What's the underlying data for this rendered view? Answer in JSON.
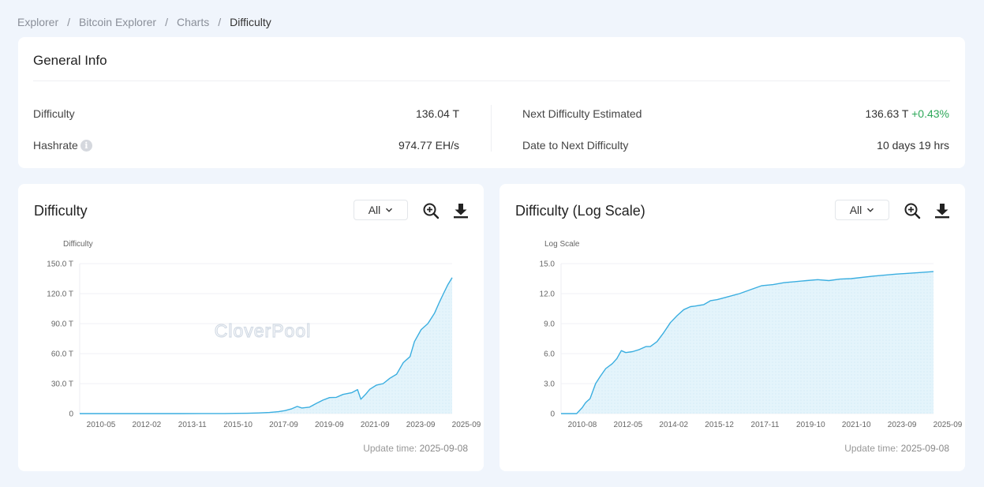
{
  "breadcrumb": {
    "items": [
      "Explorer",
      "Bitcoin Explorer",
      "Charts"
    ],
    "current": "Difficulty",
    "separator": "/"
  },
  "general_info": {
    "title": "General Info",
    "difficulty": {
      "label": "Difficulty",
      "value": "136.04 T"
    },
    "hashrate": {
      "label": "Hashrate",
      "value": "974.77 EH/s",
      "info_icon": "info-icon"
    },
    "next_difficulty": {
      "label": "Next Difficulty Estimated",
      "value": "136.63 T",
      "change": "+0.43%",
      "change_color": "#2ea85a"
    },
    "date_to_next": {
      "label": "Date to Next Difficulty",
      "value": "10 days 19 hrs"
    }
  },
  "charts_ui": {
    "difficulty": {
      "title": "Difficulty",
      "range": "All",
      "update_label": "Update time:",
      "update_value": "2025-09-08"
    },
    "log": {
      "title": "Difficulty (Log Scale)",
      "range": "All",
      "update_label": "Update time:",
      "update_value": "2025-09-08"
    }
  },
  "colors": {
    "line": "#3aaee0",
    "fill": "#e4f4fb",
    "background": "#f0f5fc",
    "watermark": "#d3dbe5"
  },
  "watermark": "CloverPool",
  "chart_data": [
    {
      "type": "area",
      "title": "Difficulty",
      "ylabel": "Difficulty",
      "ylim": [
        0,
        150
      ],
      "yticks": [
        "0",
        "30.0 T",
        "60.0 T",
        "90.0 T",
        "120.0 T",
        "150.0 T"
      ],
      "ytick_values": [
        0,
        30,
        60,
        90,
        120,
        150
      ],
      "xticks": [
        "2010-05",
        "2012-02",
        "2013-11",
        "2015-10",
        "2017-09",
        "2019-09",
        "2021-09",
        "2023-09",
        "2025-09"
      ],
      "x_start": 2009.0,
      "x_end": 2025.69,
      "grid": true,
      "series": [
        {
          "x": [
            2009.0,
            2010.5,
            2012.0,
            2013.5,
            2014.5,
            2015.5,
            2016.0,
            2016.5,
            2017.0,
            2017.5,
            2017.9,
            2018.2,
            2018.5,
            2018.75,
            2018.95,
            2019.3,
            2019.6,
            2019.9,
            2020.2,
            2020.5,
            2020.8,
            2021.2,
            2021.45,
            2021.6,
            2021.8,
            2022.0,
            2022.3,
            2022.6,
            2022.9,
            2023.2,
            2023.5,
            2023.8,
            2024.0,
            2024.3,
            2024.6,
            2024.9,
            2025.1,
            2025.3,
            2025.5,
            2025.69
          ],
          "y": [
            0,
            0,
            0,
            0.01,
            0.05,
            0.1,
            0.2,
            0.3,
            0.6,
            1.1,
            1.9,
            3.0,
            4.8,
            7.2,
            5.6,
            6.5,
            10.2,
            13.5,
            16.0,
            16.3,
            19.2,
            21.0,
            24.0,
            14.4,
            19.0,
            24.3,
            28.5,
            30.0,
            35.4,
            39.4,
            51.0,
            57.0,
            72.0,
            84.0,
            90.0,
            100.5,
            110.5,
            120.0,
            129.0,
            136.04
          ]
        }
      ]
    },
    {
      "type": "area",
      "title": "Difficulty (Log Scale)",
      "ylabel": "Log Scale",
      "ylim": [
        0,
        15
      ],
      "yticks": [
        "0",
        "3.0",
        "6.0",
        "9.0",
        "12.0",
        "15.0"
      ],
      "ytick_values": [
        0,
        3,
        6,
        9,
        12,
        15
      ],
      "xticks": [
        "2010-08",
        "2012-05",
        "2014-02",
        "2015-12",
        "2017-11",
        "2019-10",
        "2021-10",
        "2023-09",
        "2025-09"
      ],
      "x_start": 2009.0,
      "x_end": 2025.69,
      "grid": true,
      "series": [
        {
          "x": [
            2009.0,
            2009.7,
            2009.95,
            2010.1,
            2010.3,
            2010.55,
            2010.75,
            2011.0,
            2011.3,
            2011.5,
            2011.7,
            2011.9,
            2012.2,
            2012.5,
            2012.8,
            2013.0,
            2013.3,
            2013.6,
            2013.9,
            2014.2,
            2014.5,
            2014.8,
            2015.0,
            2015.4,
            2015.7,
            2016.0,
            2016.5,
            2017.0,
            2017.5,
            2018.0,
            2018.5,
            2019.0,
            2019.5,
            2020.0,
            2020.5,
            2021.0,
            2021.5,
            2022.0,
            2023.0,
            2024.0,
            2025.0,
            2025.69
          ],
          "y": [
            0,
            0,
            0.6,
            1.1,
            1.5,
            3.0,
            3.7,
            4.5,
            5.0,
            5.5,
            6.3,
            6.1,
            6.2,
            6.4,
            6.7,
            6.7,
            7.2,
            8.1,
            9.1,
            9.8,
            10.4,
            10.7,
            10.75,
            10.9,
            11.3,
            11.4,
            11.7,
            12.0,
            12.4,
            12.8,
            12.9,
            13.1,
            13.2,
            13.3,
            13.4,
            13.3,
            13.45,
            13.5,
            13.75,
            13.95,
            14.1,
            14.2
          ]
        }
      ]
    }
  ]
}
